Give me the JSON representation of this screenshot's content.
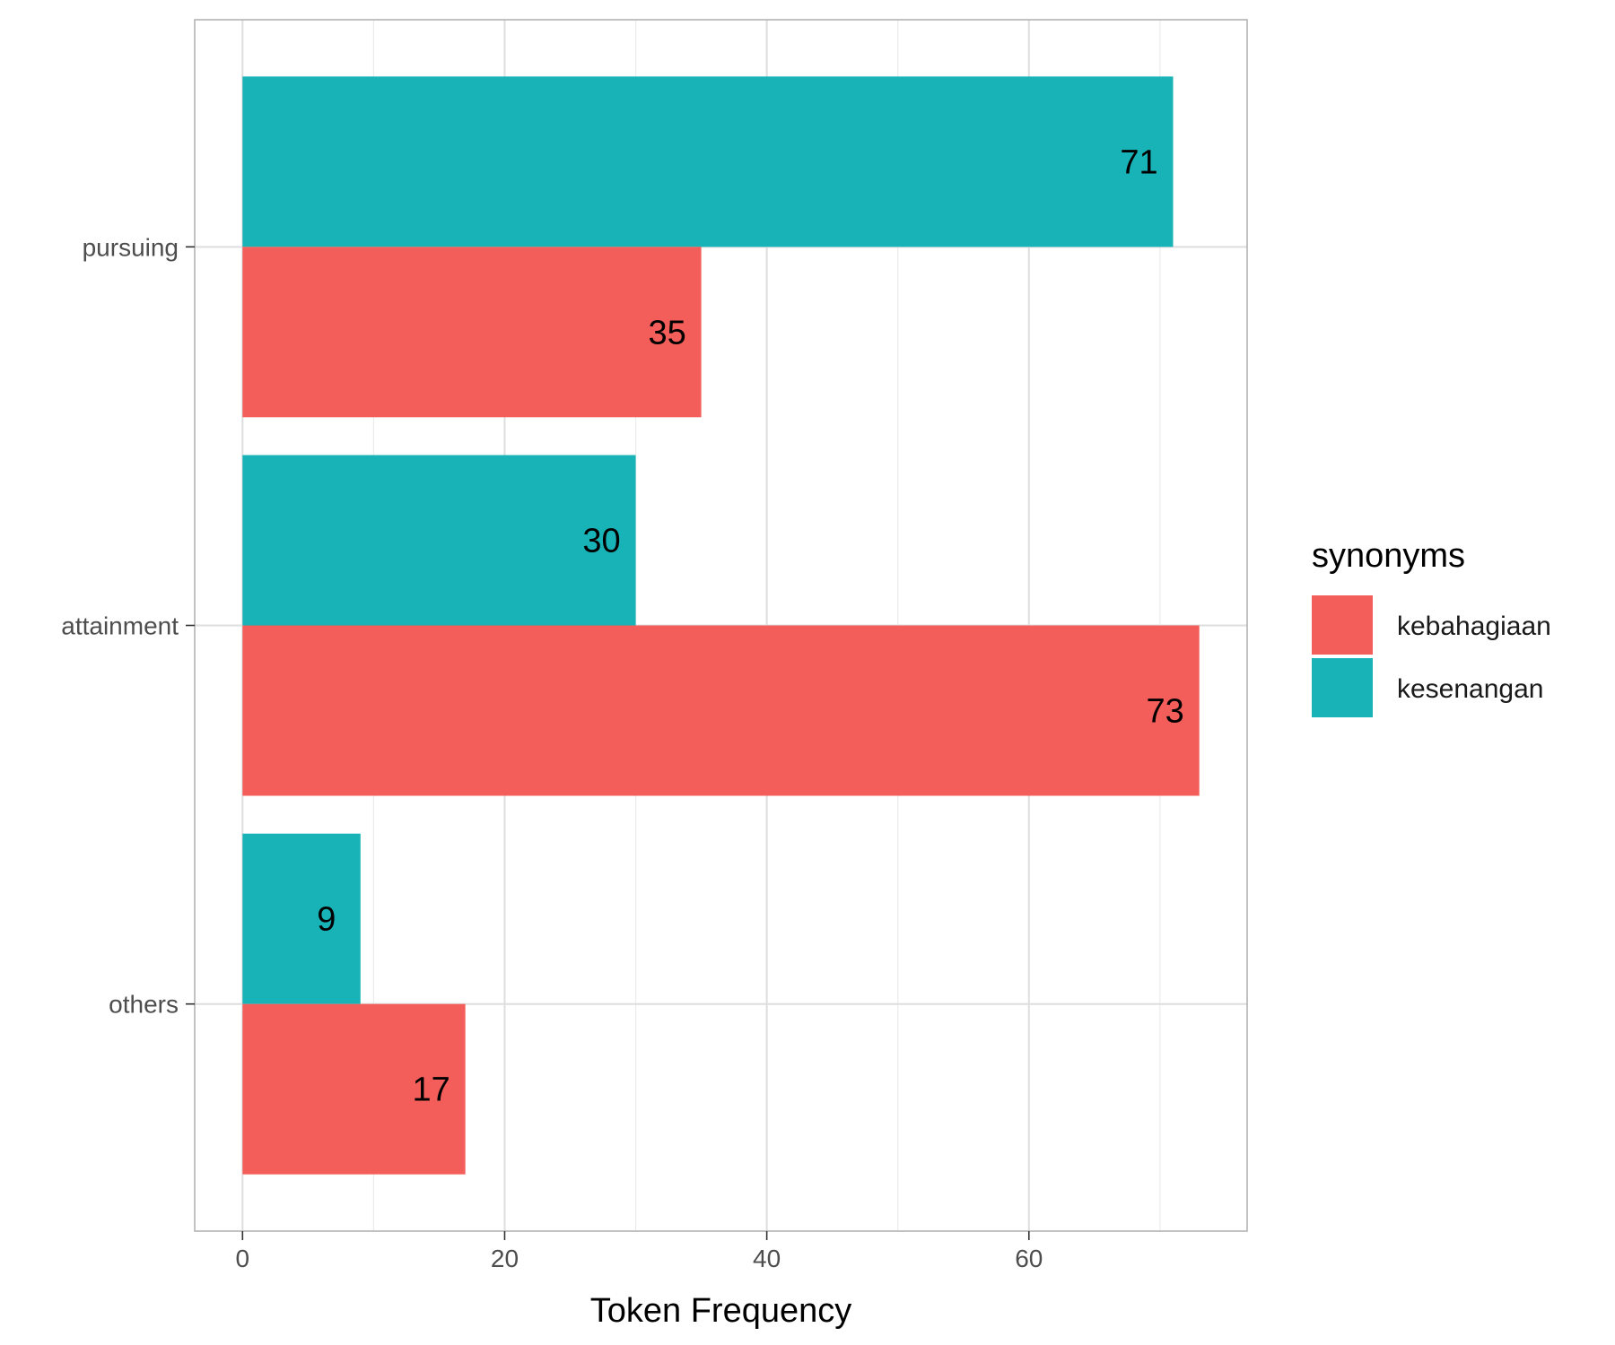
{
  "chart_data": {
    "type": "bar",
    "orientation": "horizontal",
    "title": "",
    "xlabel": "Token Frequency",
    "ylabel": "",
    "xlim": [
      -3.65,
      76.65
    ],
    "xticks": [
      0,
      20,
      40,
      60
    ],
    "grid": true,
    "categories": [
      "pursuing",
      "attainment",
      "others"
    ],
    "series": [
      {
        "name": "kebahagiaan",
        "color": "#F35E5A",
        "values": [
          35,
          73,
          17
        ]
      },
      {
        "name": "kesenangan",
        "color": "#17B3B7",
        "values": [
          71,
          30,
          9
        ]
      }
    ],
    "legend": {
      "title": "synonyms",
      "placement": "right",
      "entries": [
        "kebahagiaan",
        "kesenangan"
      ]
    }
  }
}
